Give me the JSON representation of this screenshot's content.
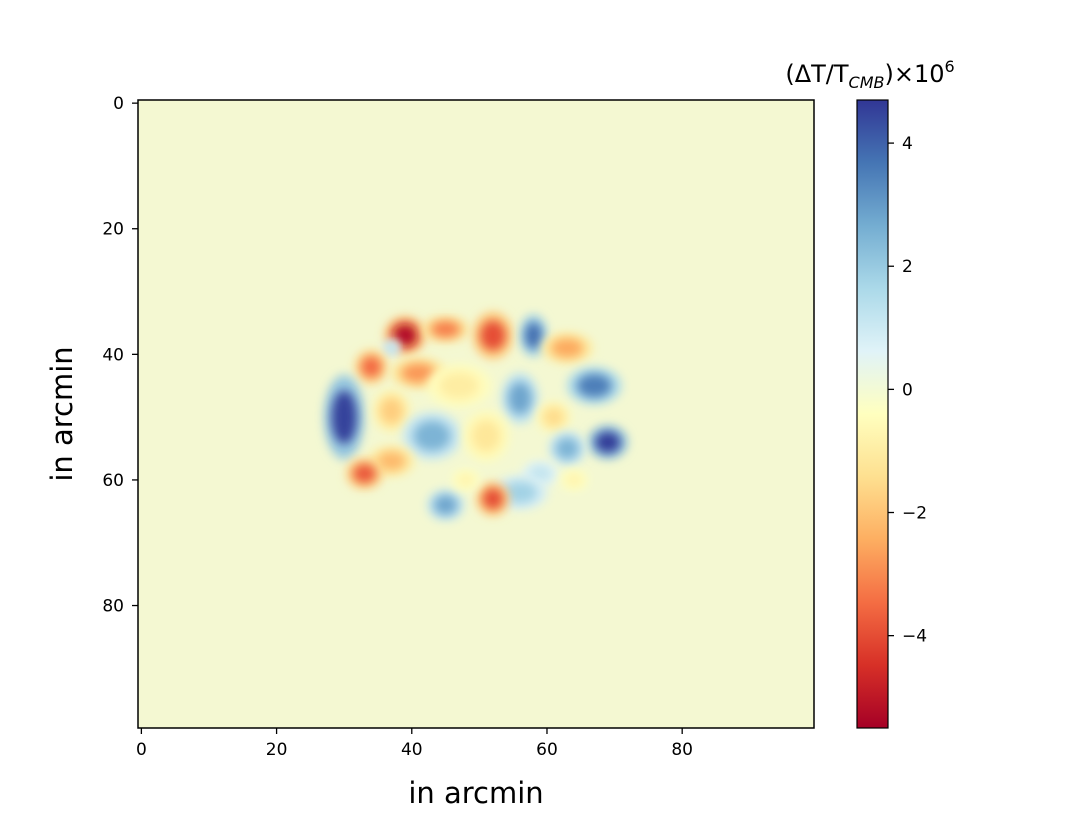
{
  "chart_data": {
    "type": "heatmap",
    "colormap": "RdYlBu",
    "colormap_stops": [
      "#a50026",
      "#d73027",
      "#f46d43",
      "#fdae61",
      "#fee090",
      "#ffffbf",
      "#e0f3f8",
      "#abd9e9",
      "#74add1",
      "#4575b4",
      "#313695"
    ],
    "background_value": 0,
    "background_color": "#f4f8d2",
    "xlabel": "in arcmin",
    "ylabel": "in arcmin",
    "xlim": [
      0,
      99
    ],
    "ylim": [
      99,
      0
    ],
    "x_ticks": [
      0,
      20,
      40,
      60,
      80
    ],
    "y_ticks": [
      0,
      20,
      40,
      60,
      80
    ],
    "colorbar": {
      "title_prefix": "(ΔT/T",
      "title_sub": "CMB",
      "title_suffix": ")×10",
      "title_sup": "6",
      "range": [
        -5.5,
        4.7
      ],
      "ticks": [
        -4,
        -2,
        0,
        2,
        4
      ],
      "tick_labels": [
        "−4",
        "−2",
        "0",
        "2",
        "4"
      ]
    },
    "blobs": [
      {
        "x": 39,
        "y": 37,
        "value": -5.2,
        "rx": 2.2,
        "ry": 2.2
      },
      {
        "x": 45,
        "y": 36,
        "value": -3.2,
        "rx": 2.5,
        "ry": 1.5
      },
      {
        "x": 52,
        "y": 37,
        "value": -4.0,
        "rx": 2.2,
        "ry": 2.8
      },
      {
        "x": 58,
        "y": 37,
        "value": 3.8,
        "rx": 1.5,
        "ry": 2.5
      },
      {
        "x": 63,
        "y": 39,
        "value": -2.5,
        "rx": 2.8,
        "ry": 1.8
      },
      {
        "x": 37,
        "y": 39,
        "value": 1.5,
        "rx": 1.0,
        "ry": 1.0
      },
      {
        "x": 34,
        "y": 42,
        "value": -3.5,
        "rx": 1.8,
        "ry": 2.0
      },
      {
        "x": 41,
        "y": 43,
        "value": -2.8,
        "rx": 3.0,
        "ry": 1.8
      },
      {
        "x": 47,
        "y": 45,
        "value": -1.0,
        "rx": 3.5,
        "ry": 2.5
      },
      {
        "x": 30,
        "y": 50,
        "value": 4.5,
        "rx": 2.2,
        "ry": 5.0
      },
      {
        "x": 37,
        "y": 49,
        "value": -1.8,
        "rx": 2.0,
        "ry": 2.5
      },
      {
        "x": 56,
        "y": 47,
        "value": 2.8,
        "rx": 2.0,
        "ry": 3.0
      },
      {
        "x": 67,
        "y": 45,
        "value": 3.5,
        "rx": 3.0,
        "ry": 2.2
      },
      {
        "x": 61,
        "y": 50,
        "value": -1.5,
        "rx": 1.8,
        "ry": 1.8
      },
      {
        "x": 43,
        "y": 53,
        "value": 2.5,
        "rx": 3.2,
        "ry": 2.8
      },
      {
        "x": 51,
        "y": 53,
        "value": -1.2,
        "rx": 2.5,
        "ry": 3.0
      },
      {
        "x": 69,
        "y": 54,
        "value": 4.6,
        "rx": 2.2,
        "ry": 2.0
      },
      {
        "x": 63,
        "y": 55,
        "value": 2.5,
        "rx": 2.0,
        "ry": 2.0
      },
      {
        "x": 37,
        "y": 57,
        "value": -2.2,
        "rx": 2.5,
        "ry": 1.8
      },
      {
        "x": 33,
        "y": 59,
        "value": -3.8,
        "rx": 2.0,
        "ry": 1.8
      },
      {
        "x": 59,
        "y": 59,
        "value": 1.2,
        "rx": 2.0,
        "ry": 1.5
      },
      {
        "x": 64,
        "y": 60,
        "value": -0.8,
        "rx": 1.5,
        "ry": 1.2
      },
      {
        "x": 56,
        "y": 62,
        "value": 1.8,
        "rx": 3.0,
        "ry": 2.0
      },
      {
        "x": 45,
        "y": 64,
        "value": 2.8,
        "rx": 2.0,
        "ry": 1.8
      },
      {
        "x": 52,
        "y": 63,
        "value": -4.0,
        "rx": 1.8,
        "ry": 2.0
      },
      {
        "x": 48,
        "y": 60,
        "value": -0.8,
        "rx": 1.5,
        "ry": 1.2
      }
    ]
  }
}
